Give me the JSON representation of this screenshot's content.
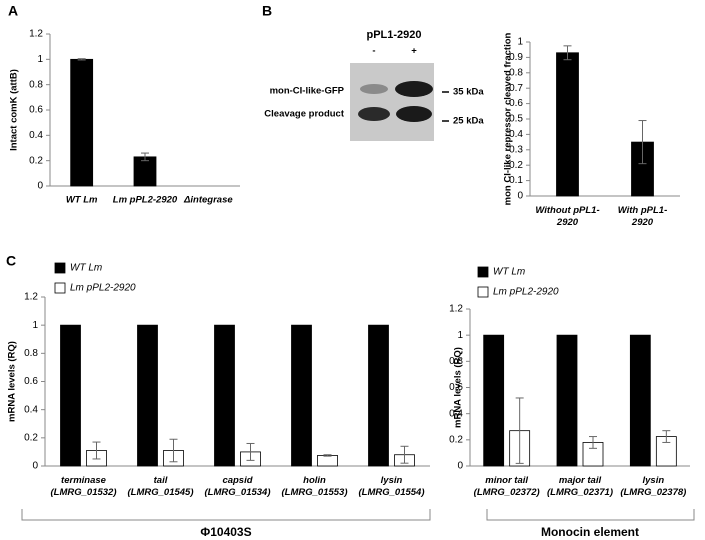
{
  "panels": [
    "A",
    "B",
    "C"
  ],
  "blot": {
    "title": "pPL1-2920",
    "lanes": [
      "-",
      "+"
    ],
    "bands": [
      "mon-CI-like-GFP",
      "Cleavage product"
    ],
    "markers": [
      "35 kDa",
      "25 kDa"
    ]
  },
  "brackets": [
    "Φ10403S",
    "Monocin element"
  ],
  "chart_data": [
    {
      "type": "bar",
      "y_label": "Intact comK (attB)",
      "categories": [
        "WT Lm",
        "Lm pPL2-2920",
        "Δintegrase"
      ],
      "values": [
        1,
        0.23,
        0
      ],
      "errors": [
        0.005,
        0.03,
        null
      ],
      "color": "#000000",
      "ylim": [
        0,
        1.2
      ],
      "yticks": [
        0,
        0.2,
        0.4,
        0.6,
        0.8,
        1,
        1.2
      ]
    },
    {
      "type": "bar",
      "y_label": "mon CI-like repressor cleaved fraction",
      "categories": [
        "Without pPL1-\n2920",
        "With pPL1-\n2920"
      ],
      "values": [
        0.93,
        0.35
      ],
      "errors": [
        0.045,
        0.14
      ],
      "color": "#000000",
      "ylim": [
        0,
        1
      ],
      "yticks": [
        0,
        0.1,
        0.2,
        0.3,
        0.4,
        0.5,
        0.6,
        0.7,
        0.8,
        0.9,
        1
      ]
    },
    {
      "type": "bar",
      "y_label": "mRNA levels (RQ)",
      "categories": [
        "terminase\n(LMRG_01532)",
        "tail\n(LMRG_01545)",
        "capsid\n(LMRG_01534)",
        "holin\n(LMRG_01553)",
        "lysin\n(LMRG_01554)"
      ],
      "series": [
        {
          "name": "WT Lm",
          "color": "#000000",
          "values": [
            1,
            1,
            1,
            1,
            1
          ]
        },
        {
          "name": "Lm pPL2-2920",
          "color": "#ffffff",
          "values": [
            0.11,
            0.11,
            0.1,
            0.075,
            0.08
          ],
          "errors": [
            0.06,
            0.08,
            0.06,
            0.005,
            0.06
          ]
        }
      ],
      "ylim": [
        0,
        1.2
      ],
      "yticks": [
        0,
        0.2,
        0.4,
        0.6,
        0.8,
        1,
        1.2
      ]
    },
    {
      "type": "bar",
      "y_label": "mRNA levels (RQ)",
      "categories": [
        "minor tail\n(LMRG_02372)",
        "major tail\n(LMRG_02371)",
        "lysin\n(LMRG_02378)"
      ],
      "series": [
        {
          "name": "WT Lm",
          "color": "#000000",
          "values": [
            1,
            1,
            1
          ]
        },
        {
          "name": "Lm pPL2-2920",
          "color": "#ffffff",
          "values": [
            0.27,
            0.18,
            0.225
          ],
          "errors": [
            0.25,
            0.045,
            0.045
          ]
        }
      ],
      "ylim": [
        0,
        1.2
      ],
      "yticks": [
        0,
        0.2,
        0.4,
        0.6,
        0.8,
        1,
        1.2
      ]
    }
  ]
}
